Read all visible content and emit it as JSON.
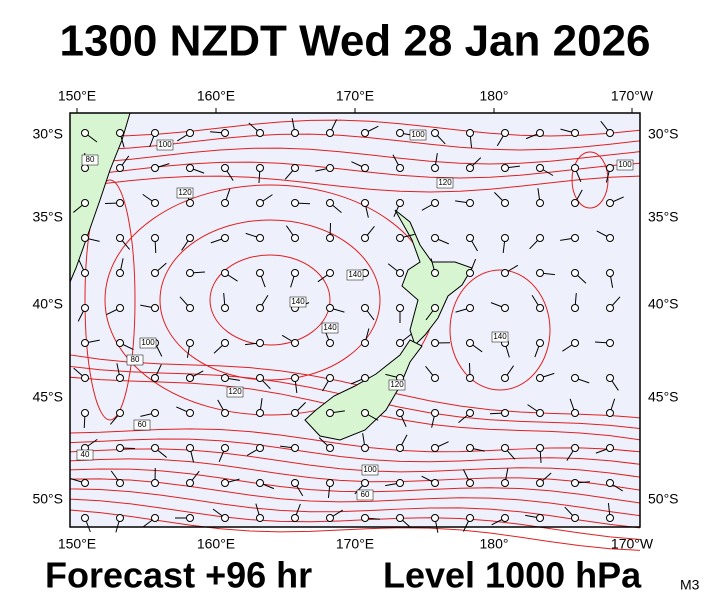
{
  "title": "1300 NZDT Wed 28 Jan 2026",
  "footer": {
    "forecast": "Forecast +96 hr",
    "level": "Level 1000 hPa",
    "code": "M3"
  },
  "axes": {
    "lon_labels": [
      "150°E",
      "160°E",
      "170°E",
      "180°",
      "170°W"
    ],
    "lat_labels": [
      "30°S",
      "35°S",
      "40°S",
      "45°S",
      "50°S"
    ]
  },
  "contour_labels": [
    "80",
    "100",
    "120",
    "100",
    "120",
    "100",
    "140",
    "140",
    "140",
    "100",
    "80",
    "120",
    "60",
    "120",
    "140",
    "40",
    "100",
    "60"
  ]
}
